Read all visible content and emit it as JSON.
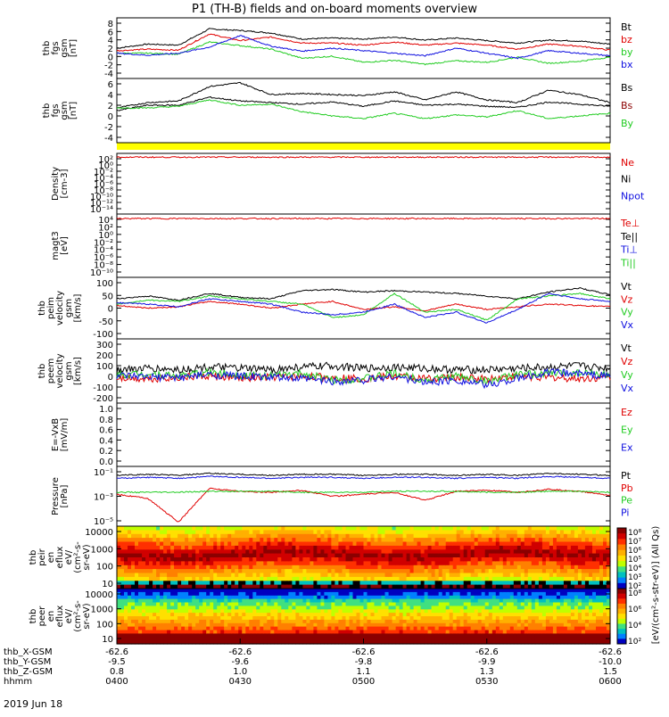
{
  "title": "P1 (TH-B) fields and on-board moments overview",
  "date_label": "2019 Jun 18",
  "colors": {
    "black": "#000000",
    "red": "#e00000",
    "green": "#22cc22",
    "blue": "#1010e0",
    "darkred": "#8b0000",
    "yellow": "#ffff00"
  },
  "chart_data": [
    {
      "type": "line",
      "ylabel": [
        "thb",
        "fgs",
        "gsm",
        "[nT]"
      ],
      "ylim": [
        -4,
        8
      ],
      "yticks": [
        "8",
        "6",
        "4",
        "2",
        "0",
        "-2",
        "-4"
      ],
      "legend": [
        {
          "name": "Bt",
          "color": "#000000"
        },
        {
          "name": "bz",
          "color": "#e00000"
        },
        {
          "name": "by",
          "color": "#22cc22"
        },
        {
          "name": "bx",
          "color": "#1010e0"
        }
      ],
      "series": [
        {
          "name": "Bt",
          "values": [
            2.0,
            2.8,
            2.6,
            5.8,
            5.5,
            5.0,
            3.8,
            4.0,
            3.8,
            4.2,
            3.6,
            4.0,
            3.5,
            3.0,
            3.6,
            3.4,
            2.8
          ]
        },
        {
          "name": "bz",
          "values": [
            1.5,
            1.8,
            1.6,
            4.8,
            3.5,
            4.2,
            3.0,
            3.0,
            2.6,
            3.2,
            2.6,
            3.0,
            2.6,
            1.8,
            2.8,
            2.4,
            1.6
          ]
        },
        {
          "name": "by",
          "values": [
            1.0,
            1.0,
            0.8,
            3.2,
            2.5,
            1.8,
            0.0,
            0.4,
            -0.8,
            -0.4,
            -1.2,
            -0.5,
            -0.8,
            0.2,
            -1.0,
            -0.6,
            0.2
          ]
        },
        {
          "name": "bx",
          "values": [
            1.0,
            0.6,
            1.0,
            2.2,
            4.5,
            2.4,
            1.4,
            2.0,
            1.5,
            1.0,
            0.5,
            2.0,
            1.0,
            0.0,
            1.5,
            1.0,
            0.5
          ]
        }
      ]
    },
    {
      "type": "line",
      "ylabel": [
        "thb",
        "fgs",
        "gsm",
        "[nT]"
      ],
      "ylim": [
        -6,
        6
      ],
      "yticks": [
        "6",
        "4",
        "2",
        "0",
        "-2",
        "-4"
      ],
      "legend": [
        {
          "name": "Bs",
          "color": "#000000"
        },
        {
          "name": "Bs",
          "color": "#8b0000"
        },
        {
          "name": "By",
          "color": "#22cc22"
        }
      ],
      "series": [
        {
          "name": "Bs",
          "values": [
            0.5,
            1.5,
            1.8,
            4.5,
            5.2,
            3.0,
            3.2,
            3.0,
            2.8,
            3.5,
            2.0,
            3.5,
            2.0,
            1.5,
            3.8,
            3.0,
            1.5
          ]
        },
        {
          "name": "Bs",
          "values": [
            0.0,
            1.0,
            1.0,
            2.5,
            1.8,
            1.5,
            1.2,
            1.6,
            0.8,
            1.8,
            1.0,
            1.2,
            0.8,
            0.6,
            1.6,
            1.2,
            0.8
          ]
        },
        {
          "name": "By",
          "values": [
            0.5,
            0.5,
            0.8,
            2.0,
            1.0,
            1.2,
            -0.2,
            -1.0,
            -1.5,
            -0.5,
            -1.5,
            -0.8,
            -1.2,
            0.0,
            -1.5,
            -1.0,
            -0.5
          ]
        }
      ]
    },
    {
      "type": "line",
      "ylabel": [
        "Density",
        "[cm-3]"
      ],
      "ylim": [
        -14,
        2
      ],
      "log": true,
      "yticks": [
        "10²",
        "10⁰",
        "10⁻²",
        "10⁻⁴",
        "10⁻⁶",
        "10⁻⁸",
        "10⁻¹⁰",
        "10⁻¹²",
        "10⁻¹⁴"
      ],
      "legend": [
        {
          "name": "Ne",
          "color": "#e00000"
        },
        {
          "name": "Ni",
          "color": "#000000"
        },
        {
          "name": "Npot",
          "color": "#1010e0"
        }
      ],
      "series": [
        {
          "name": "Ne",
          "values": [
            1,
            1,
            1,
            1,
            1,
            1,
            1,
            1,
            1,
            1,
            1,
            1,
            1,
            1,
            1,
            1,
            1
          ]
        }
      ]
    },
    {
      "type": "line",
      "ylabel": [
        "magt3",
        "[eV]"
      ],
      "ylim": [
        -10,
        4
      ],
      "log": true,
      "yticks": [
        "10⁴",
        "10²",
        "10⁰",
        "10⁻²",
        "10⁻⁴",
        "10⁻⁶",
        "10⁻⁸",
        "10⁻¹⁰"
      ],
      "legend": [
        {
          "name": "Te⊥",
          "color": "#e00000"
        },
        {
          "name": "Te||",
          "color": "#000000"
        },
        {
          "name": "Ti⊥",
          "color": "#1010e0"
        },
        {
          "name": "Ti||",
          "color": "#22cc22"
        }
      ],
      "series": [
        {
          "name": "Te⊥",
          "values": [
            3,
            3,
            3,
            3,
            3,
            3,
            3,
            3,
            3,
            3,
            3,
            3,
            3,
            3,
            3,
            3,
            3
          ]
        }
      ]
    },
    {
      "type": "line",
      "ylabel": [
        "thb",
        "peim",
        "velocity",
        "gsm",
        "[km/s]"
      ],
      "ylim": [
        -120,
        110
      ],
      "yticks": [
        "100",
        "50",
        "0",
        "-50",
        "-100"
      ],
      "legend": [
        {
          "name": "Vt",
          "color": "#000000"
        },
        {
          "name": "Vz",
          "color": "#e00000"
        },
        {
          "name": "Vy",
          "color": "#22cc22"
        },
        {
          "name": "Vx",
          "color": "#1010e0"
        }
      ],
      "series": [
        {
          "name": "Vt",
          "values": [
            30,
            40,
            25,
            50,
            35,
            30,
            60,
            65,
            55,
            60,
            55,
            50,
            40,
            30,
            55,
            70,
            45
          ]
        },
        {
          "name": "Vz",
          "values": [
            5,
            -5,
            0,
            20,
            10,
            -5,
            10,
            20,
            -10,
            0,
            -15,
            10,
            -10,
            0,
            10,
            5,
            0
          ]
        },
        {
          "name": "Vy",
          "values": [
            10,
            25,
            20,
            40,
            30,
            20,
            10,
            -40,
            -30,
            50,
            -20,
            -10,
            -50,
            30,
            40,
            50,
            30
          ]
        },
        {
          "name": "Vx",
          "values": [
            15,
            10,
            0,
            30,
            20,
            10,
            -20,
            -30,
            -20,
            10,
            -40,
            -20,
            -60,
            -10,
            50,
            30,
            20
          ]
        }
      ]
    },
    {
      "type": "line",
      "ylabel": [
        "thb",
        "peem",
        "velocity",
        "gsm",
        "[km/s]"
      ],
      "ylim": [
        -200,
        300
      ],
      "yticks": [
        "300",
        "200",
        "100",
        "0",
        "-100",
        "-200"
      ],
      "legend": [
        {
          "name": "Vt",
          "color": "#000000"
        },
        {
          "name": "Vz",
          "color": "#e00000"
        },
        {
          "name": "Vy",
          "color": "#22cc22"
        },
        {
          "name": "Vx",
          "color": "#1010e0"
        }
      ],
      "series": [
        {
          "name": "Vt",
          "values": [
            60,
            70,
            60,
            80,
            70,
            60,
            80,
            90,
            70,
            80,
            70,
            60,
            60,
            70,
            80,
            90,
            70
          ]
        },
        {
          "name": "Vz",
          "values": [
            0,
            -10,
            0,
            10,
            -10,
            0,
            10,
            0,
            -10,
            10,
            -10,
            0,
            -10,
            10,
            0,
            -10,
            0
          ]
        },
        {
          "name": "Vy",
          "values": [
            20,
            30,
            10,
            40,
            20,
            10,
            30,
            -20,
            -10,
            30,
            -20,
            10,
            -30,
            20,
            30,
            40,
            20
          ]
        },
        {
          "name": "Vx",
          "values": [
            10,
            0,
            0,
            20,
            10,
            0,
            -10,
            -30,
            -20,
            10,
            -40,
            -20,
            -60,
            -10,
            40,
            30,
            10
          ]
        }
      ]
    },
    {
      "type": "line",
      "ylabel": [
        "E=-VxB",
        "[mV/m]"
      ],
      "ylim": [
        0,
        1
      ],
      "yticks": [
        "1.0",
        "0.8",
        "0.6",
        "0.4",
        "0.2",
        "0.0"
      ],
      "legend": [
        {
          "name": "Ez",
          "color": "#e00000"
        },
        {
          "name": "Ey",
          "color": "#22cc22"
        },
        {
          "name": "Ex",
          "color": "#1010e0"
        }
      ],
      "series": []
    },
    {
      "type": "line",
      "ylabel": [
        "Pressure",
        "[nPa]"
      ],
      "ylim": [
        -6,
        0
      ],
      "log": true,
      "yticks": [
        "10⁻¹",
        "10⁻³",
        "10⁻⁵"
      ],
      "legend": [
        {
          "name": "Pt",
          "color": "#000000"
        },
        {
          "name": "Pb",
          "color": "#e00000"
        },
        {
          "name": "Pe",
          "color": "#22cc22"
        },
        {
          "name": "Pi",
          "color": "#1010e0"
        }
      ],
      "series": [
        {
          "name": "Pt",
          "values": [
            -0.9,
            -0.8,
            -0.9,
            -0.7,
            -0.8,
            -0.9,
            -0.8,
            -0.8,
            -0.9,
            -0.8,
            -0.8,
            -0.9,
            -0.8,
            -0.9,
            -0.7,
            -0.8,
            -0.9
          ]
        },
        {
          "name": "Pb",
          "values": [
            -2.8,
            -3.2,
            -5.6,
            -2.2,
            -2.5,
            -2.6,
            -2.4,
            -3.0,
            -2.8,
            -2.6,
            -3.4,
            -2.5,
            -2.4,
            -2.6,
            -2.3,
            -2.5,
            -2.9
          ]
        },
        {
          "name": "Pe",
          "values": [
            -2.6,
            -2.6,
            -2.6,
            -2.5,
            -2.5,
            -2.5,
            -2.6,
            -2.6,
            -2.6,
            -2.5,
            -2.5,
            -2.5,
            -2.6,
            -2.6,
            -2.5,
            -2.5,
            -2.6
          ]
        },
        {
          "name": "Pi",
          "values": [
            -1.2,
            -1.1,
            -1.2,
            -1.0,
            -1.1,
            -1.2,
            -1.1,
            -1.1,
            -1.2,
            -1.1,
            -1.1,
            -1.2,
            -1.1,
            -1.2,
            -1.0,
            -1.1,
            -1.2
          ]
        }
      ]
    },
    {
      "type": "heatmap",
      "ylabel": [
        "thb",
        "peir",
        "en",
        "eflux",
        "eV/",
        "(cm²-s-",
        "sr-eV)"
      ],
      "yticks": [
        "10000",
        "1000",
        "100",
        "10"
      ]
    },
    {
      "type": "heatmap",
      "ylabel": [
        "thb",
        "peer",
        "en",
        "eflux",
        "eV/",
        "(cm²-s-",
        "sr-eV)"
      ],
      "yticks": [
        "10000",
        "1000",
        "100",
        "10"
      ]
    }
  ],
  "colorbar": {
    "label": "[eV/(cm²-s-str-eV)] (All Qs)",
    "ticks_top": [
      "10⁸",
      "10⁷",
      "10⁶",
      "10⁵",
      "10⁴",
      "10³",
      "10²"
    ],
    "ticks_bottom": [
      "10⁸",
      "10⁶",
      "10⁴",
      "10²"
    ]
  },
  "xaxis": {
    "labels": [
      "0400",
      "0430",
      "0500",
      "0530",
      "0600"
    ],
    "rows": [
      {
        "name": "thb_X-GSM",
        "values": [
          "-62.6",
          "-62.6",
          "-62.6",
          "-62.6",
          "-62.6"
        ]
      },
      {
        "name": "thb_Y-GSM",
        "values": [
          "-9.5",
          "-9.6",
          "-9.8",
          "-9.9",
          "-10.0"
        ]
      },
      {
        "name": "thb_Z-GSM",
        "values": [
          "0.8",
          "1.0",
          "1.1",
          "1.3",
          "1.5"
        ]
      },
      {
        "name": "hhmm",
        "values": [
          "0400",
          "0430",
          "0500",
          "0530",
          "0600"
        ]
      }
    ]
  }
}
